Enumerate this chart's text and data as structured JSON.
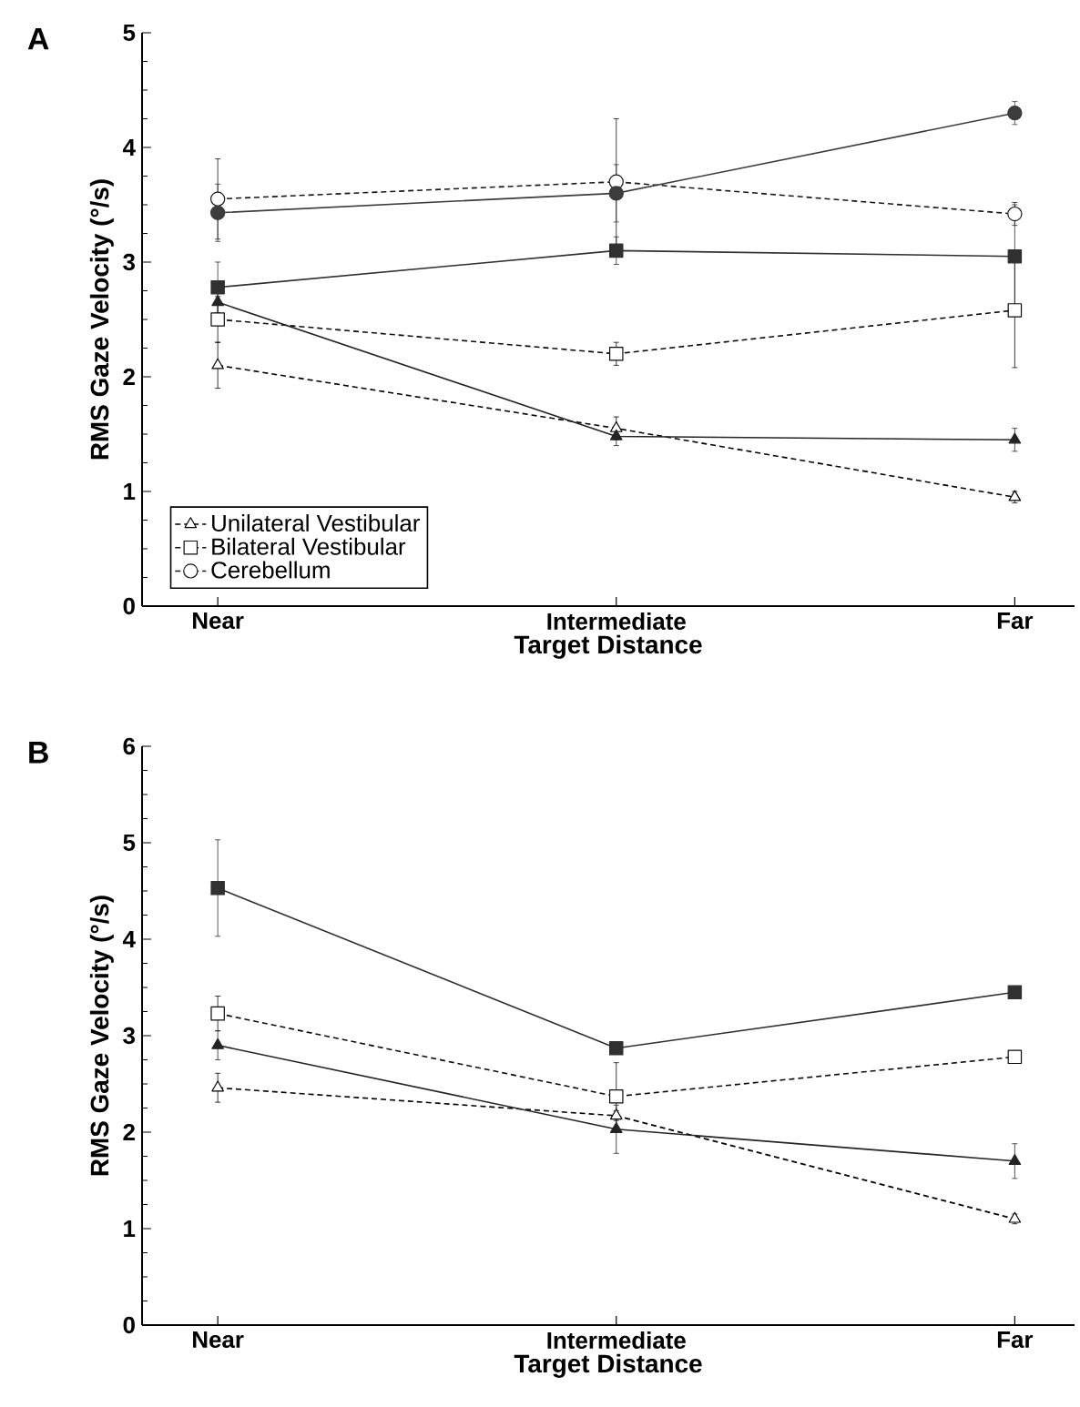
{
  "chart_data": [
    {
      "type": "line",
      "title": "A",
      "xlabel": "Target Distance",
      "ylabel": "RMS Gaze Velocity (°/s)",
      "categories": [
        "Near",
        "Intermediate",
        "Far"
      ],
      "ylim": [
        0,
        5
      ],
      "yticks": [
        0,
        1,
        2,
        3,
        4,
        5
      ],
      "legend": "bottom left",
      "series": [
        {
          "name": "Unilateral Vestibular",
          "color": "#000000",
          "marker": "triangle",
          "line_style": "dashed",
          "values": [
            2.1,
            1.55,
            0.95
          ],
          "errors": [
            0.2,
            0.1,
            0.05
          ]
        },
        {
          "name": "Bilateral Vestibular",
          "color": "#0c0c0c",
          "marker": "square",
          "line_style": "dashed",
          "values": [
            2.5,
            2.2,
            2.58
          ],
          "errors": [
            0.2,
            0.1,
            0.5
          ]
        },
        {
          "name": "Cerebellum",
          "color": "#181818",
          "marker": "circle",
          "line_style": "dashed",
          "values": [
            3.55,
            3.7,
            3.42
          ],
          "errors": [
            0.35,
            0.55,
            0.1
          ]
        },
        {
          "color": "#242424",
          "marker": "triangle",
          "line_style": "solid",
          "values": [
            2.65,
            1.48,
            1.45
          ],
          "errors": [
            0.1,
            0.08,
            0.1
          ]
        },
        {
          "color": "#303030",
          "marker": "square",
          "line_style": "solid",
          "values": [
            2.78,
            3.1,
            3.05
          ],
          "errors": [
            0.22,
            0.12,
            0.45
          ]
        },
        {
          "color": "#3c3c3c",
          "marker": "circle",
          "line_style": "solid",
          "values": [
            3.43,
            3.6,
            4.3
          ],
          "errors": [
            0.25,
            0.25,
            0.1
          ]
        }
      ]
    },
    {
      "type": "line",
      "title": "B",
      "xlabel": "Target Distance",
      "ylabel": "RMS Gaze Velocity (°/s)",
      "categories": [
        "Near",
        "Intermediate",
        "Far"
      ],
      "ylim": [
        0,
        6
      ],
      "yticks": [
        0,
        1,
        2,
        3,
        4,
        5,
        6
      ],
      "series": [
        {
          "color": "#000000",
          "marker": "triangle",
          "line_style": "dashed",
          "values": [
            2.46,
            2.17,
            1.1
          ],
          "errors": [
            0.15,
            0.05,
            0.05
          ]
        },
        {
          "color": "#0c0c0c",
          "marker": "square",
          "line_style": "dashed",
          "values": [
            3.23,
            2.37,
            2.78
          ],
          "errors": [
            0.18,
            0.35,
            0.05
          ]
        },
        {
          "color": "#242424",
          "marker": "triangle",
          "line_style": "solid",
          "values": [
            2.9,
            2.03,
            1.7
          ],
          "errors": [
            0.15,
            0.25,
            0.18
          ]
        },
        {
          "color": "#303030",
          "marker": "square",
          "line_style": "solid",
          "values": [
            4.53,
            2.87,
            3.45
          ],
          "errors": [
            0.5,
            0.05,
            0.05
          ]
        }
      ]
    }
  ]
}
